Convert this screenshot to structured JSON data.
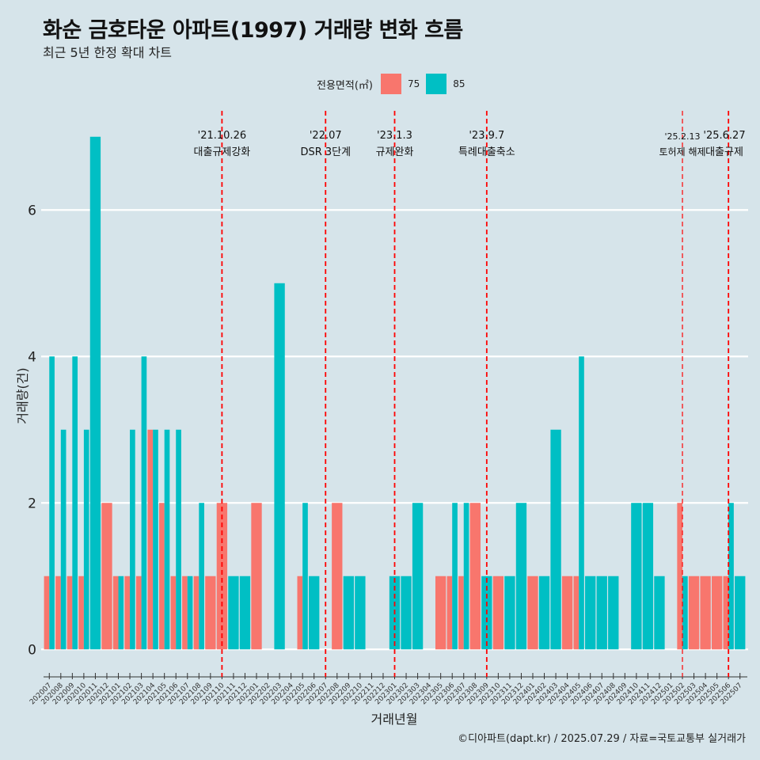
{
  "header": {
    "title": "화순 금호타운 아파트(1997) 거래량 변화 흐름",
    "subtitle": "최근 5년 한정 확대 차트"
  },
  "legend": {
    "title": "전용면적(㎡)",
    "items": [
      {
        "label": "75",
        "color": "#f8766d"
      },
      {
        "label": "85",
        "color": "#00bfc4"
      }
    ]
  },
  "caption": "©디아파트(dapt.kr) / 2025.07.29 / 자료=국토교통부 실거래가",
  "chart_data": {
    "type": "bar",
    "title": "화순 금호타운 아파트(1997) 거래량 변화 흐름",
    "xlabel": "거래년월",
    "ylabel": "거래량(건)",
    "ylim": [
      -0.3,
      7.3
    ],
    "yticks": [
      0,
      2,
      4,
      6
    ],
    "grid": true,
    "legend_position": "top",
    "categories": [
      "202007",
      "202008",
      "202009",
      "202010",
      "202011",
      "202012",
      "202101",
      "202102",
      "202103",
      "202104",
      "202105",
      "202106",
      "202107",
      "202108",
      "202109",
      "202110",
      "202111",
      "202112",
      "202201",
      "202202",
      "202203",
      "202204",
      "202205",
      "202206",
      "202207",
      "202208",
      "202209",
      "202210",
      "202211",
      "202212",
      "202301",
      "202302",
      "202303",
      "202304",
      "202305",
      "202306",
      "202307",
      "202308",
      "202309",
      "202310",
      "202311",
      "202312",
      "202401",
      "202402",
      "202403",
      "202404",
      "202405",
      "202406",
      "202407",
      "202408",
      "202409",
      "202410",
      "202411",
      "202412",
      "202501",
      "202502",
      "202503",
      "202504",
      "202505",
      "202506",
      "202507"
    ],
    "series": [
      {
        "name": "75",
        "color": "#f8766d",
        "values": [
          1,
          1,
          1,
          1,
          0,
          2,
          1,
          1,
          1,
          3,
          2,
          1,
          1,
          1,
          1,
          2,
          0,
          0,
          2,
          0,
          0,
          0,
          1,
          0,
          0,
          2,
          0,
          0,
          0,
          0,
          0,
          0,
          0,
          0,
          1,
          1,
          1,
          2,
          0,
          1,
          0,
          0,
          1,
          0,
          0,
          1,
          1,
          0,
          0,
          0,
          0,
          0,
          0,
          0,
          0,
          2,
          1,
          1,
          1,
          1,
          0
        ]
      },
      {
        "name": "85",
        "color": "#00bfc4",
        "values": [
          4,
          3,
          4,
          3,
          7,
          0,
          1,
          3,
          4,
          3,
          3,
          3,
          1,
          2,
          0,
          0,
          1,
          1,
          0,
          0,
          5,
          0,
          2,
          1,
          0,
          0,
          1,
          1,
          0,
          0,
          1,
          1,
          2,
          0,
          0,
          2,
          2,
          0,
          1,
          0,
          1,
          2,
          0,
          1,
          3,
          0,
          4,
          1,
          1,
          1,
          0,
          2,
          2,
          1,
          0,
          1,
          0,
          0,
          0,
          2,
          1
        ]
      }
    ],
    "events": [
      {
        "at": "202110",
        "date": "'21.10.26",
        "label": "대출규제강화",
        "weight": "bold"
      },
      {
        "at": "202207",
        "date": "'22.07",
        "label": "DSR 3단계",
        "weight": "bold"
      },
      {
        "at": "202301",
        "date": "'23.1.3",
        "label": "규제완화",
        "weight": "bold"
      },
      {
        "at": "202309",
        "date": "'23.9.7",
        "label": "특례대출축소",
        "weight": "bold"
      },
      {
        "at": "202502",
        "date": "'25.2.13",
        "label": "토허제 해제",
        "weight": "light"
      },
      {
        "at": "202506",
        "date": "'25.6.27",
        "label": "대출규제",
        "weight": "bold"
      }
    ]
  }
}
